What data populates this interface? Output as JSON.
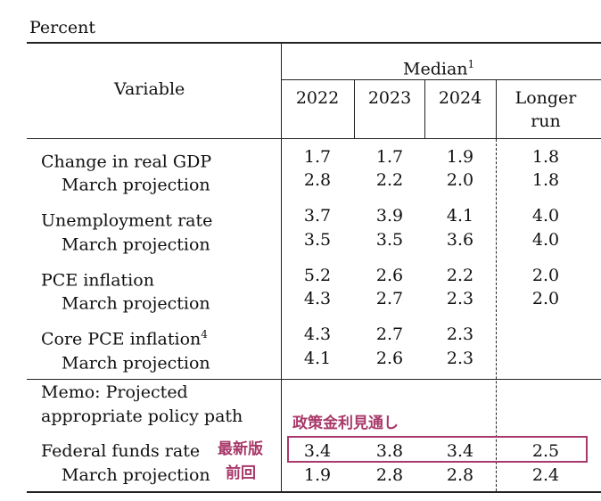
{
  "unit_label": "Percent",
  "header": {
    "variable": "Variable",
    "median": "Median",
    "median_note": "1",
    "years": [
      "2022",
      "2023",
      "2024"
    ],
    "longer_run_1": "Longer",
    "longer_run_2": "run"
  },
  "rows": [
    {
      "label": "Change in real GDP",
      "note": "",
      "values": [
        "1.7",
        "1.7",
        "1.9",
        "1.8"
      ]
    },
    {
      "label": "March projection",
      "note": "",
      "values": [
        "2.8",
        "2.2",
        "2.0",
        "1.8"
      ]
    },
    {
      "label": "Unemployment rate",
      "note": "",
      "values": [
        "3.7",
        "3.9",
        "4.1",
        "4.0"
      ]
    },
    {
      "label": "March projection",
      "note": "",
      "values": [
        "3.5",
        "3.5",
        "3.6",
        "4.0"
      ]
    },
    {
      "label": "PCE inflation",
      "note": "",
      "values": [
        "5.2",
        "2.6",
        "2.2",
        "2.0"
      ]
    },
    {
      "label": "March projection",
      "note": "",
      "values": [
        "4.3",
        "2.7",
        "2.3",
        "2.0"
      ]
    },
    {
      "label": "Core PCE inflation",
      "note": "4",
      "values": [
        "4.3",
        "2.7",
        "2.3",
        ""
      ]
    },
    {
      "label": "March projection",
      "note": "",
      "values": [
        "4.1",
        "2.6",
        "2.3",
        ""
      ]
    }
  ],
  "memo": {
    "line1": "Memo: Projected",
    "line2": "appropriate policy path",
    "annotation": "政策金利見通し"
  },
  "fed_rows": [
    {
      "label": "Federal funds rate",
      "tag": "最新版",
      "values": [
        "3.4",
        "3.8",
        "3.4",
        "2.5"
      ]
    },
    {
      "label": "March projection",
      "tag": "前回",
      "values": [
        "1.9",
        "2.8",
        "2.8",
        "2.4"
      ]
    }
  ],
  "colors": {
    "annotation": "#a8396a"
  }
}
